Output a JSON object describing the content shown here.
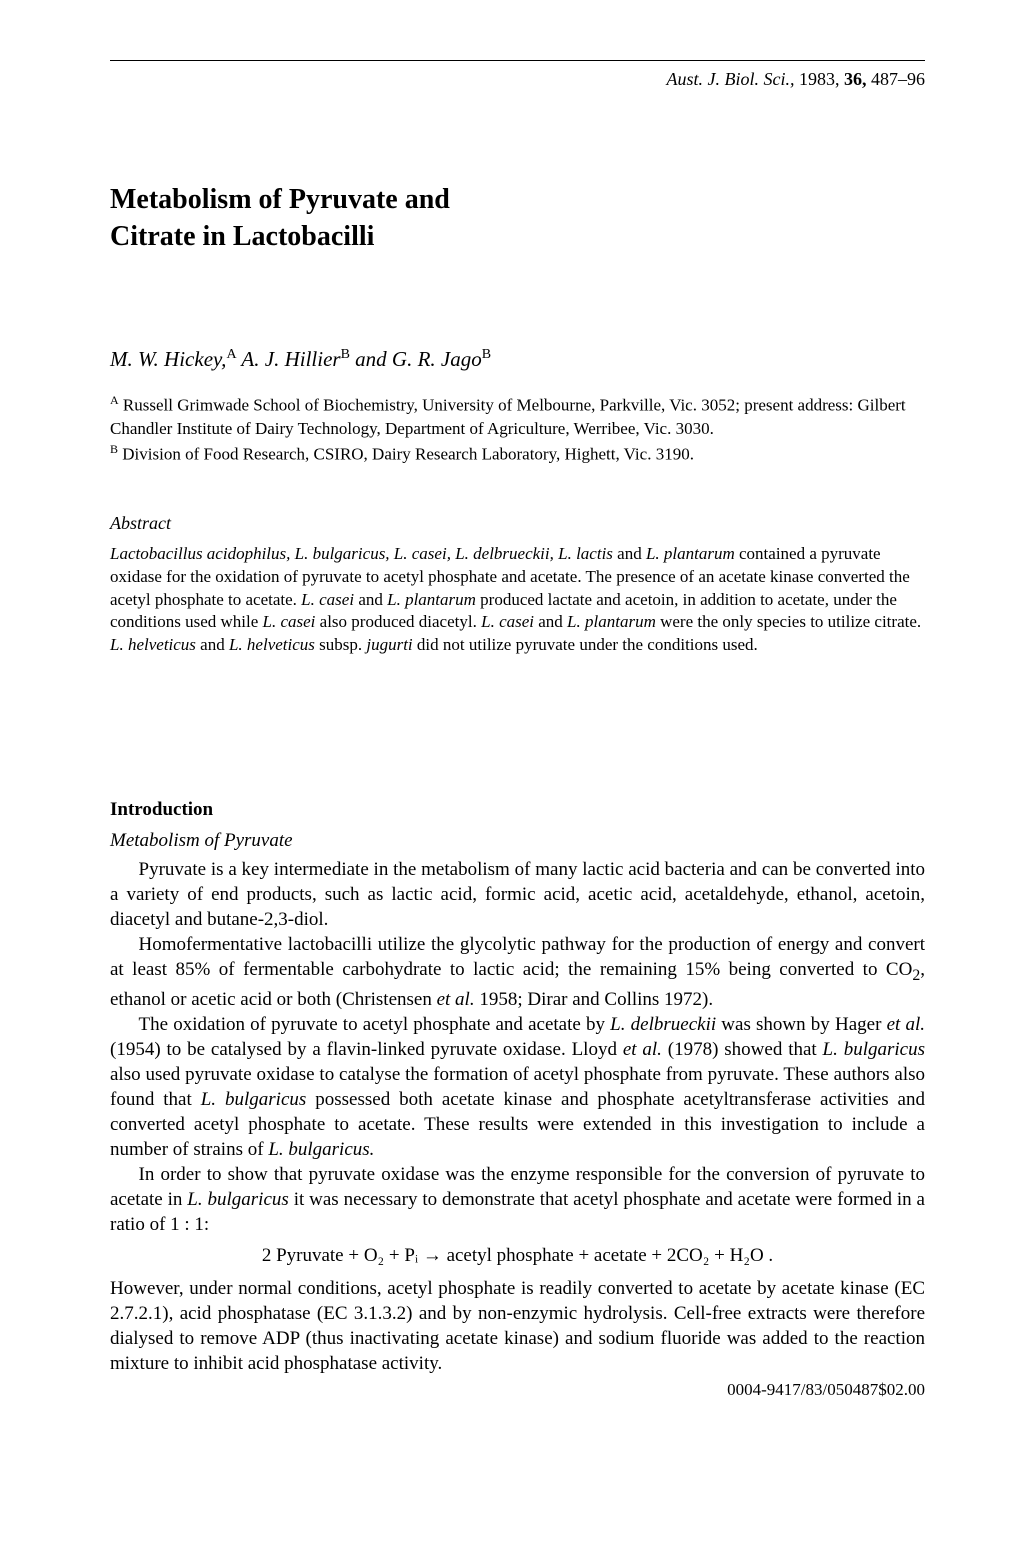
{
  "journal": {
    "name": "Aust. J. Biol. Sci.,",
    "year": "1983,",
    "volume": "36,",
    "pages": "487–96"
  },
  "title": {
    "line1": "Metabolism of Pyruvate and",
    "line2": "Citrate in Lactobacilli"
  },
  "authors": {
    "a1_name": "M. W. Hickey,",
    "a1_sup": "A",
    "a2_name": " A. J. Hillier",
    "a2_sup": "B",
    "a3_and": " and G. R. Jago",
    "a3_sup": "B"
  },
  "affiliations": {
    "a_sup": "A",
    "a_text": " Russell Grimwade School of Biochemistry, University of Melbourne, Parkville, Vic. 3052; present address: Gilbert Chandler Institute of Dairy Technology, Department of Agriculture, Werribee, Vic. 3030.",
    "b_sup": "B",
    "b_text": " Division of Food Research, CSIRO, Dairy Research Laboratory, Highett, Vic. 3190."
  },
  "abstract": {
    "heading": "Abstract",
    "t1": "Lactobacillus acidophilus, L. bulgaricus, L. casei, L. delbrueckii, L. lactis",
    "t2": " and ",
    "t3": "L. plantarum",
    "t4": " contained a pyruvate oxidase for the oxidation of pyruvate to acetyl phosphate and acetate. The presence of an acetate kinase converted the acetyl phosphate to acetate. ",
    "t5": "L. casei",
    "t6": " and ",
    "t7": "L. plantarum",
    "t8": " produced lactate and acetoin, in addition to acetate, under the conditions used while ",
    "t9": "L. casei",
    "t10": " also produced diacetyl. ",
    "t11": "L. casei",
    "t12": " and ",
    "t13": "L. plantarum",
    "t14": " were the only species to utilize citrate. ",
    "t15": "L. helveticus",
    "t16": " and ",
    "t17": "L. helveticus",
    "t18": " subsp. ",
    "t19": "jugurti",
    "t20": " did not utilize pyruvate under the conditions used."
  },
  "intro": {
    "heading": "Introduction",
    "sub": "Metabolism of Pyruvate",
    "p1": "Pyruvate is a key intermediate in the metabolism of many lactic acid bacteria and can be converted into a variety of end products, such as lactic acid, formic acid, acetic acid, acetaldehyde, ethanol, acetoin, diacetyl and butane-2,3-diol.",
    "p2a": "Homofermentative lactobacilli utilize the glycolytic pathway for the production of energy and convert at least 85% of fermentable carbohydrate to lactic acid; the remaining 15% being converted to CO",
    "p2sub": "2",
    "p2b": ", ethanol or acetic acid or both (Christensen ",
    "p2etal": "et al.",
    "p2c": " 1958; Dirar and Collins 1972).",
    "p3a": "The oxidation of pyruvate to acetyl phosphate and acetate by ",
    "p3sp1": "L. delbrueckii",
    "p3b": " was shown by Hager ",
    "p3etal1": "et al.",
    "p3c": " (1954) to be catalysed by a flavin-linked pyruvate oxidase. Lloyd ",
    "p3etal2": "et al.",
    "p3d": " (1978) showed that ",
    "p3sp2": "L. bulgaricus",
    "p3e": " also used pyruvate oxidase to catalyse the formation of acetyl phosphate from pyruvate. These authors also found that ",
    "p3sp3": "L. bulgaricus",
    "p3f": " possessed both acetate kinase and phosphate acetyltransferase activities and converted acetyl phosphate to acetate. These results were extended in this investigation to include a number of strains of ",
    "p3sp4": "L. bulgaricus.",
    "p4a": "In order to show that pyruvate oxidase was the enzyme responsible for the conversion of pyruvate to acetate in ",
    "p4sp": "L. bulgaricus",
    "p4b": " it was necessary to demonstrate that acetyl phosphate and acetate were formed in a ratio of 1 : 1:",
    "eq": "2 Pyruvate + O₂ + Pᵢ → acetyl phosphate + acetate + 2CO₂ + H₂O .",
    "p5": "However, under normal conditions, acetyl phosphate is readily converted to acetate by acetate kinase (EC 2.7.2.1), acid phosphatase (EC 3.1.3.2) and by non-enzymic hydrolysis. Cell-free extracts were therefore dialysed to remove ADP (thus inactivating acetate kinase) and sodium fluoride was added to the reaction mixture to inhibit acid phosphatase activity."
  },
  "doi": "0004-9417/83/050487$02.00"
}
